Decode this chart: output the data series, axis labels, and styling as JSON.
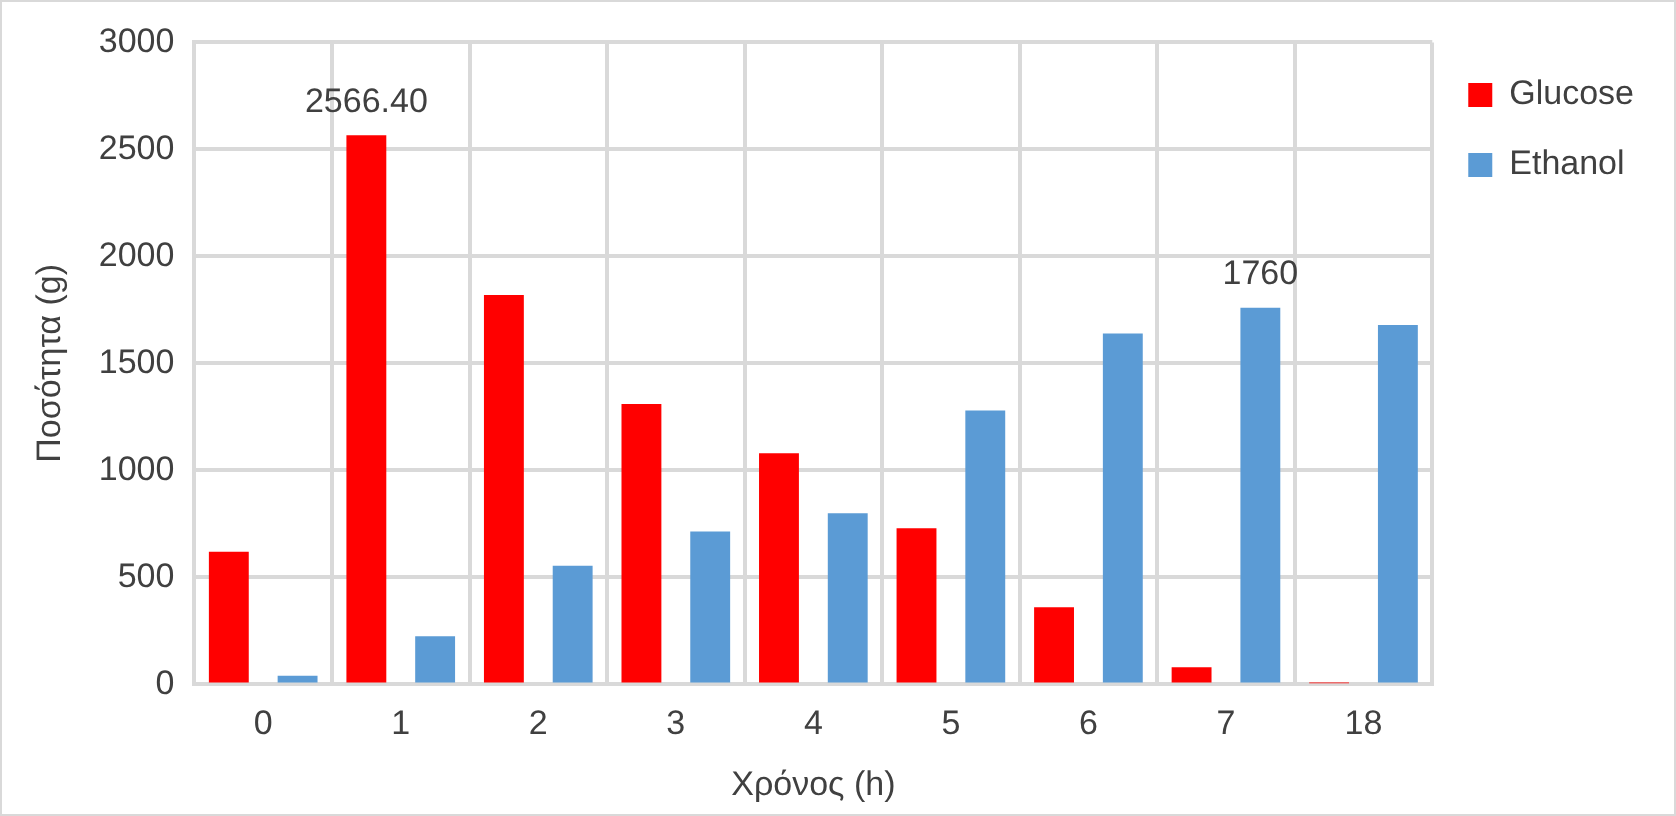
{
  "chart_data": {
    "type": "bar",
    "xlabel": "Χρόνος (h)",
    "ylabel": "Ποσότητα (g)",
    "categories": [
      "0",
      "1",
      "2",
      "3",
      "4",
      "5",
      "6",
      "7",
      "18"
    ],
    "series": [
      {
        "name": "Glucose",
        "color": "#ff0000",
        "values": [
          620,
          2566.4,
          1820,
          1310,
          1080,
          730,
          360,
          80,
          5
        ],
        "value_labels": [
          null,
          "2566.40",
          null,
          null,
          null,
          null,
          null,
          null,
          null
        ]
      },
      {
        "name": "Ethanol",
        "color": "#5b9bd5",
        "values": [
          40,
          225,
          555,
          715,
          800,
          1280,
          1640,
          1760,
          1680
        ],
        "value_labels": [
          null,
          null,
          null,
          null,
          null,
          null,
          null,
          "1760",
          null
        ]
      }
    ],
    "ylim": [
      0,
      3000
    ],
    "yticks": [
      0,
      500,
      1000,
      1500,
      2000,
      2500,
      3000
    ],
    "grid": true,
    "legend": "right"
  }
}
